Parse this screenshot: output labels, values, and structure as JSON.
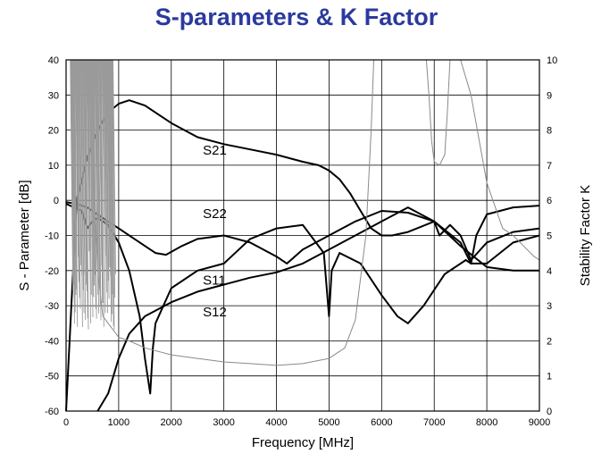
{
  "chart_data": {
    "type": "line",
    "title": "S-parameters & K Factor",
    "title_color": "#2b3a9e",
    "xlabel": "Frequency [MHz]",
    "ylabel": "S - Parameter  [dB]",
    "y2label": "Stability Factor K",
    "xlim": [
      0,
      9000
    ],
    "ylim": [
      -60,
      40
    ],
    "y2lim": [
      0,
      10
    ],
    "xticks": [
      "0",
      "1000",
      "2000",
      "3000",
      "4000",
      "5000",
      "6000",
      "7000",
      "8000",
      "9000"
    ],
    "yticks": [
      "-60",
      "-50",
      "-40",
      "-30",
      "-20",
      "-10",
      "0",
      "10",
      "20",
      "30",
      "40"
    ],
    "y2ticks": [
      "0",
      "1",
      "2",
      "3",
      "4",
      "5",
      "6",
      "7",
      "8",
      "9",
      "10"
    ],
    "grid": true,
    "series": [
      {
        "name": "S21",
        "color": "#000000",
        "axis": "left",
        "label_at": [
          2600,
          13
        ],
        "x": [
          0,
          200,
          400,
          600,
          800,
          1000,
          1200,
          1500,
          2000,
          2500,
          3000,
          3500,
          4000,
          4500,
          4800,
          5000,
          5200,
          5400,
          5600,
          5800,
          6000,
          6200,
          6500,
          7000,
          7500,
          8000,
          8500,
          9000
        ],
        "y": [
          -60,
          0,
          12,
          20,
          25,
          27.5,
          28.5,
          27,
          22,
          18,
          16,
          14.5,
          13,
          11,
          10,
          8.5,
          6,
          2,
          -3,
          -8,
          -10,
          -10,
          -9,
          -6,
          -13,
          -19,
          -20,
          -20
        ]
      },
      {
        "name": "S22",
        "color": "#000000",
        "axis": "left",
        "label_at": [
          2600,
          -5
        ],
        "x": [
          0,
          200,
          400,
          600,
          800,
          1000,
          1300,
          1600,
          1700,
          1900,
          2200,
          2500,
          3000,
          3500,
          4000,
          4200,
          4500,
          5000,
          5500,
          6000,
          6500,
          7000,
          7100,
          7300,
          7500,
          7700,
          8000,
          8500,
          9000
        ],
        "y": [
          -0.5,
          -1,
          -2,
          -4,
          -6,
          -8,
          -11,
          -14,
          -15,
          -15.5,
          -13,
          -11,
          -10,
          -12,
          -16,
          -18,
          -14,
          -10,
          -6,
          -3,
          -3.5,
          -6,
          -10,
          -7,
          -10,
          -17,
          -12,
          -9,
          -8
        ]
      },
      {
        "name": "S11",
        "color": "#000000",
        "axis": "left",
        "label_at": [
          2600,
          -24
        ],
        "x": [
          0,
          300,
          400,
          500,
          600,
          800,
          1000,
          1200,
          1400,
          1500,
          1600,
          1650,
          1700,
          2000,
          2500,
          3000,
          3500,
          4000,
          4500,
          4900,
          5000,
          5050,
          5200,
          5600,
          6000,
          6300,
          6500,
          6800,
          7200,
          7600,
          7700,
          7800,
          8000,
          8500,
          9000
        ],
        "y": [
          -1,
          -3,
          -8,
          -6,
          -5,
          -7,
          -12,
          -20,
          -33,
          -45,
          -55,
          -42,
          -35,
          -25,
          -20,
          -18,
          -11,
          -8,
          -7,
          -15,
          -33,
          -20,
          -15,
          -18,
          -27,
          -33,
          -35,
          -30,
          -21,
          -17,
          -18,
          -10,
          -4,
          -2,
          -1.5
        ]
      },
      {
        "name": "S12",
        "color": "#000000",
        "axis": "left",
        "label_at": [
          2600,
          -33
        ],
        "x": [
          600,
          800,
          1000,
          1200,
          1500,
          2000,
          2500,
          3000,
          3500,
          4000,
          4500,
          5000,
          5500,
          6000,
          6500,
          7000,
          7500,
          7700,
          8000,
          8500,
          9000
        ],
        "y": [
          -65,
          -55,
          -45,
          -38,
          -33,
          -29,
          -26,
          -24,
          -22,
          -20.5,
          -18,
          -14,
          -10,
          -6,
          -2,
          -6,
          -12,
          -18,
          -18,
          -12,
          -10
        ]
      },
      {
        "name": "",
        "color": "#8a8a8a",
        "axis": "right",
        "x": [
          0,
          500,
          550,
          600,
          700,
          900,
          1000,
          1200,
          1500,
          2000,
          2500,
          3000,
          3500,
          4000,
          4500,
          5000,
          5300,
          5500,
          5700,
          5800,
          5850,
          5900,
          6000,
          6100,
          6200,
          6400,
          6600,
          6800,
          6850,
          6900,
          6950,
          7000,
          7100,
          7200,
          7250,
          7300,
          7500,
          7700,
          8000,
          8300,
          8500,
          8700,
          8900,
          9000
        ],
        "y": [
          10,
          10,
          6,
          4,
          2.7,
          2.3,
          2.1,
          2.0,
          1.8,
          1.6,
          1.5,
          1.4,
          1.35,
          1.3,
          1.35,
          1.5,
          1.8,
          2.6,
          5,
          8,
          10,
          10,
          10,
          10,
          10,
          10,
          10,
          10,
          10,
          9,
          7.7,
          7.1,
          7.0,
          7.3,
          8.5,
          10,
          10,
          9,
          6.5,
          5.2,
          5,
          4.7,
          4.4,
          4.3
        ]
      }
    ]
  }
}
